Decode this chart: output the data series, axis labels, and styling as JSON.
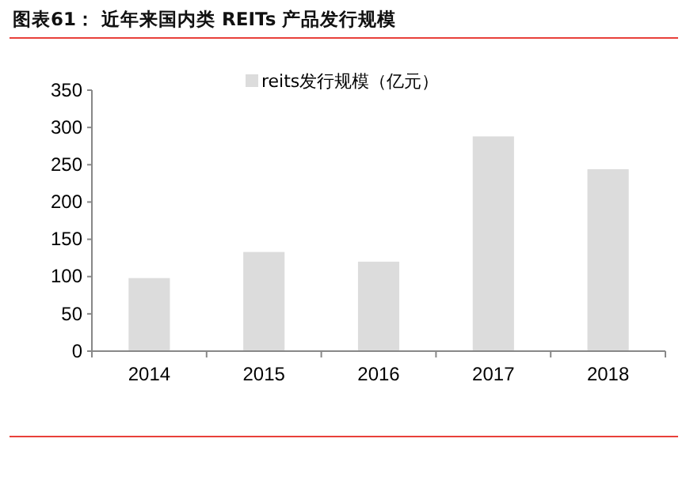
{
  "chart_data": {
    "type": "bar",
    "title": "图表61：  近年来国内类 REITs 产品发行规模",
    "categories": [
      "2014",
      "2015",
      "2016",
      "2017",
      "2018"
    ],
    "series": [
      {
        "name": "reits发行规模（亿元）",
        "color": "#dcdcdc",
        "values": [
          98,
          133,
          120,
          288,
          244
        ]
      }
    ],
    "ylim": [
      0,
      350
    ],
    "yticks": [
      0,
      50,
      100,
      150,
      200,
      250,
      300,
      350
    ],
    "grid": false,
    "legend": "top"
  }
}
